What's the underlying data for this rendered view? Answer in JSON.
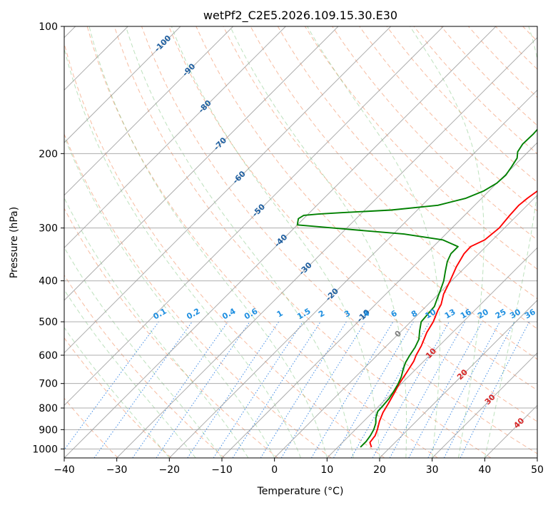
{
  "chart_data": {
    "type": "line",
    "title": "wetPf2_C2E5.2026.109.15.30.E30",
    "xlabel": "Temperature (°C)",
    "ylabel": "Pressure (hPa)",
    "xlim": [
      -40,
      50
    ],
    "ylim": [
      1050,
      100
    ],
    "y_scale": "log",
    "grid": true,
    "x_ticks": [
      -40,
      -30,
      -20,
      -10,
      0,
      10,
      20,
      30,
      40,
      50
    ],
    "x_tick_labels": [
      "−40",
      "−30",
      "−20",
      "−10",
      "0",
      "10",
      "20",
      "30",
      "40",
      "50"
    ],
    "y_ticks": [
      1000,
      900,
      800,
      700,
      600,
      500,
      400,
      300,
      200,
      100
    ],
    "y_tick_labels": [
      "1000",
      "900",
      "800",
      "700",
      "600",
      "500",
      "400",
      "300",
      "200",
      "100"
    ],
    "isotherm_labels": [
      {
        "p": 110,
        "T": -100,
        "text": "-100"
      },
      {
        "p": 127,
        "T": -90,
        "text": "-90"
      },
      {
        "p": 155,
        "T": -80,
        "text": "-80"
      },
      {
        "p": 190,
        "T": -70,
        "text": "-70"
      },
      {
        "p": 228,
        "T": -60,
        "text": "-60"
      },
      {
        "p": 273,
        "T": -50,
        "text": "-50"
      },
      {
        "p": 322,
        "T": -40,
        "text": "-40"
      },
      {
        "p": 375,
        "T": -30,
        "text": "-30"
      },
      {
        "p": 432,
        "T": -20,
        "text": "-20"
      },
      {
        "p": 485,
        "T": -10,
        "text": "-10"
      },
      {
        "p": 535,
        "T": 0,
        "text": "0"
      },
      {
        "p": 595,
        "T": 10,
        "text": "10"
      },
      {
        "p": 668,
        "T": 20,
        "text": "20"
      },
      {
        "p": 765,
        "T": 30,
        "text": "30"
      },
      {
        "p": 870,
        "T": 40,
        "text": "40"
      }
    ],
    "mixing_ratio_labels": [
      "0.1",
      "0.2",
      "0.4",
      "0.6",
      "1",
      "1.5",
      "2",
      "3",
      "4",
      "6",
      "8",
      "10",
      "13",
      "16",
      "20",
      "25",
      "30",
      "36"
    ],
    "series": [
      {
        "key": "temperature",
        "color": "#ff0000",
        "p": [
          990,
          965,
          930,
          900,
          860,
          820,
          780,
          740,
          700,
          660,
          620,
          600,
          570,
          530,
          500,
          470,
          455,
          430,
          400,
          370,
          345,
          332,
          320,
          300,
          280,
          265,
          255,
          240,
          225,
          210,
          195,
          180,
          165,
          150,
          140,
          130,
          120,
          112,
          105,
          100
        ],
        "T": [
          16.4,
          15.2,
          14.9,
          14.2,
          13.0,
          12.0,
          11.3,
          10.5,
          9.6,
          8.9,
          8.1,
          7.4,
          6.6,
          5.1,
          4.3,
          3.0,
          2.5,
          1.0,
          -0.3,
          -1.8,
          -2.8,
          -2.9,
          -1.5,
          -1.0,
          -1.4,
          -1.6,
          -1.3,
          -0.5,
          0.5,
          1.7,
          2.7,
          3.3,
          3.9,
          4.4,
          4.8,
          5.5,
          6.4,
          7.3,
          8.5,
          9.6
        ]
      },
      {
        "key": "dewpoint",
        "color": "#008000",
        "p": [
          990,
          960,
          930,
          900,
          870,
          845,
          815,
          790,
          760,
          730,
          700,
          675,
          650,
          625,
          600,
          575,
          550,
          525,
          500,
          480,
          460,
          440,
          420,
          400,
          380,
          360,
          345,
          332,
          320,
          310,
          300,
          295,
          290,
          285,
          280,
          278,
          276,
          272,
          265,
          255,
          245,
          235,
          225,
          215,
          205,
          198,
          190,
          180,
          170,
          160,
          152,
          143,
          135,
          128,
          122,
          117,
          112,
          108,
          104,
          100
        ],
        "T": [
          14.3,
          14.3,
          14.0,
          13.5,
          12.7,
          11.7,
          10.8,
          10.7,
          10.5,
          10.0,
          9.4,
          8.7,
          7.7,
          6.8,
          6.2,
          5.7,
          4.9,
          3.4,
          2.0,
          1.8,
          1.6,
          0.6,
          -0.4,
          -1.5,
          -3.0,
          -4.5,
          -5.3,
          -5.3,
          -9.5,
          -18.0,
          -32.5,
          -40.0,
          -40.5,
          -41.0,
          -40.6,
          -38.0,
          -34.0,
          -25.0,
          -17.0,
          -13.0,
          -11.0,
          -10.0,
          -9.8,
          -10.3,
          -10.9,
          -12.0,
          -12.5,
          -12.4,
          -12.6,
          -14.5,
          -15.4,
          -15.8,
          -16.4,
          -17.1,
          -17.5,
          -15.0,
          -10.0,
          -6.5,
          -6.5,
          -6.5
        ]
      }
    ]
  }
}
